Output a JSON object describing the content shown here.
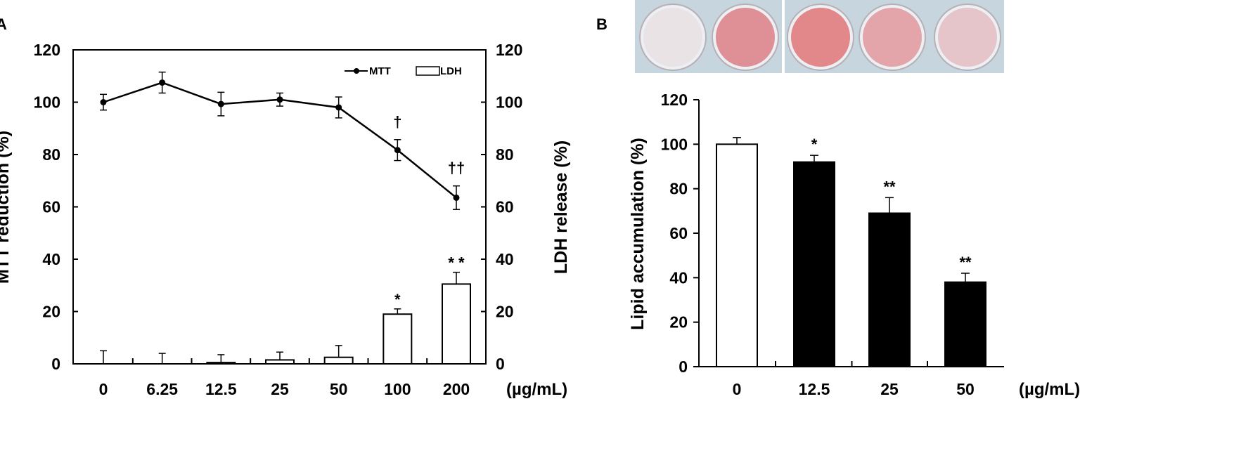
{
  "panel_a": {
    "label": "A",
    "y_left_label": "MTT reduction (%)",
    "y_right_label": "LDH release (%)",
    "unit": "(µg/mL)",
    "legend": {
      "mtt": "MTT",
      "ldh": "LDH"
    }
  },
  "panel_b": {
    "label": "B",
    "y_label": "Lipid accumulation (%)",
    "unit": "(µg/mL)",
    "photo_colors": [
      "#e9e3e6",
      "#df8f96",
      "#e2878a",
      "#e3a5aa",
      "#e6c5ca"
    ]
  },
  "chart_data": [
    {
      "type": "line",
      "categories": [
        "0",
        "6.25",
        "12.5",
        "25",
        "50",
        "100",
        "200"
      ],
      "series": [
        {
          "name": "MTT",
          "values": [
            100,
            107.5,
            99.3,
            101,
            98,
            81.7,
            63.5
          ],
          "errors": [
            3,
            4,
            4.5,
            2.5,
            4,
            4,
            4.5
          ],
          "annotations": [
            "",
            "",
            "",
            "",
            "",
            "†",
            "††"
          ]
        },
        {
          "name": "LDH",
          "type": "bar",
          "values": [
            0,
            0,
            0.5,
            1.5,
            2.5,
            19,
            30.5
          ],
          "errors": [
            5,
            4,
            3,
            3,
            4.5,
            2,
            4.5
          ],
          "annotations": [
            "",
            "",
            "",
            "",
            "",
            "*",
            "* *"
          ]
        }
      ],
      "ylim": [
        0,
        120
      ],
      "yticks": [
        0,
        20,
        40,
        60,
        80,
        100,
        120
      ],
      "y2lim": [
        0,
        120
      ],
      "y2ticks": [
        0,
        20,
        40,
        60,
        80,
        100,
        120
      ],
      "legend_position": "top-right"
    },
    {
      "type": "bar",
      "categories": [
        "0",
        "12.5",
        "25",
        "50"
      ],
      "values": [
        100,
        92,
        69,
        38
      ],
      "errors": [
        3,
        3,
        7,
        4
      ],
      "annotations": [
        "",
        "*",
        "**",
        "**"
      ],
      "bar_colors": [
        "#ffffff",
        "#000000",
        "#000000",
        "#000000"
      ],
      "ylim": [
        0,
        120
      ],
      "yticks": [
        0,
        20,
        40,
        60,
        80,
        100,
        120
      ]
    }
  ]
}
